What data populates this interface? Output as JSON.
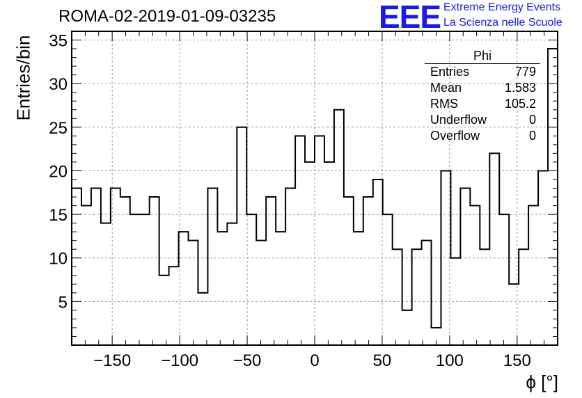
{
  "header": {
    "title": "ROMA-02-2019-01-09-03235",
    "logo_text": "EEE",
    "logo_line1": "Extreme Energy Events",
    "logo_line2": "La Scienza nelle Scuole"
  },
  "stats": {
    "title": "Phi",
    "rows": [
      {
        "label": "Entries",
        "value": "779"
      },
      {
        "label": "Mean",
        "value": "1.583"
      },
      {
        "label": "RMS",
        "value": "105.2"
      },
      {
        "label": "Underflow",
        "value": "0"
      },
      {
        "label": "Overflow",
        "value": "0"
      }
    ]
  },
  "chart_data": {
    "type": "histogram",
    "xlabel": "ϕ [°]",
    "ylabel": "Entries/bin",
    "xlim": [
      -180,
      180
    ],
    "ylim": [
      0,
      36
    ],
    "bin_width": 7.2,
    "x_ticks": [
      -150,
      -100,
      -50,
      0,
      50,
      100,
      150
    ],
    "y_ticks": [
      5,
      10,
      15,
      20,
      25,
      30,
      35
    ],
    "grid": true,
    "values": [
      18,
      16,
      18,
      14,
      18,
      17,
      15,
      15,
      17,
      8,
      9,
      13,
      12,
      6,
      18,
      13,
      14,
      25,
      15,
      12,
      17,
      13,
      18,
      24,
      21,
      24,
      21,
      27,
      17,
      13,
      17,
      19,
      15,
      11,
      4,
      11,
      12,
      2,
      20,
      10,
      18,
      16,
      11,
      22,
      15,
      7,
      11,
      16,
      20,
      34
    ]
  }
}
